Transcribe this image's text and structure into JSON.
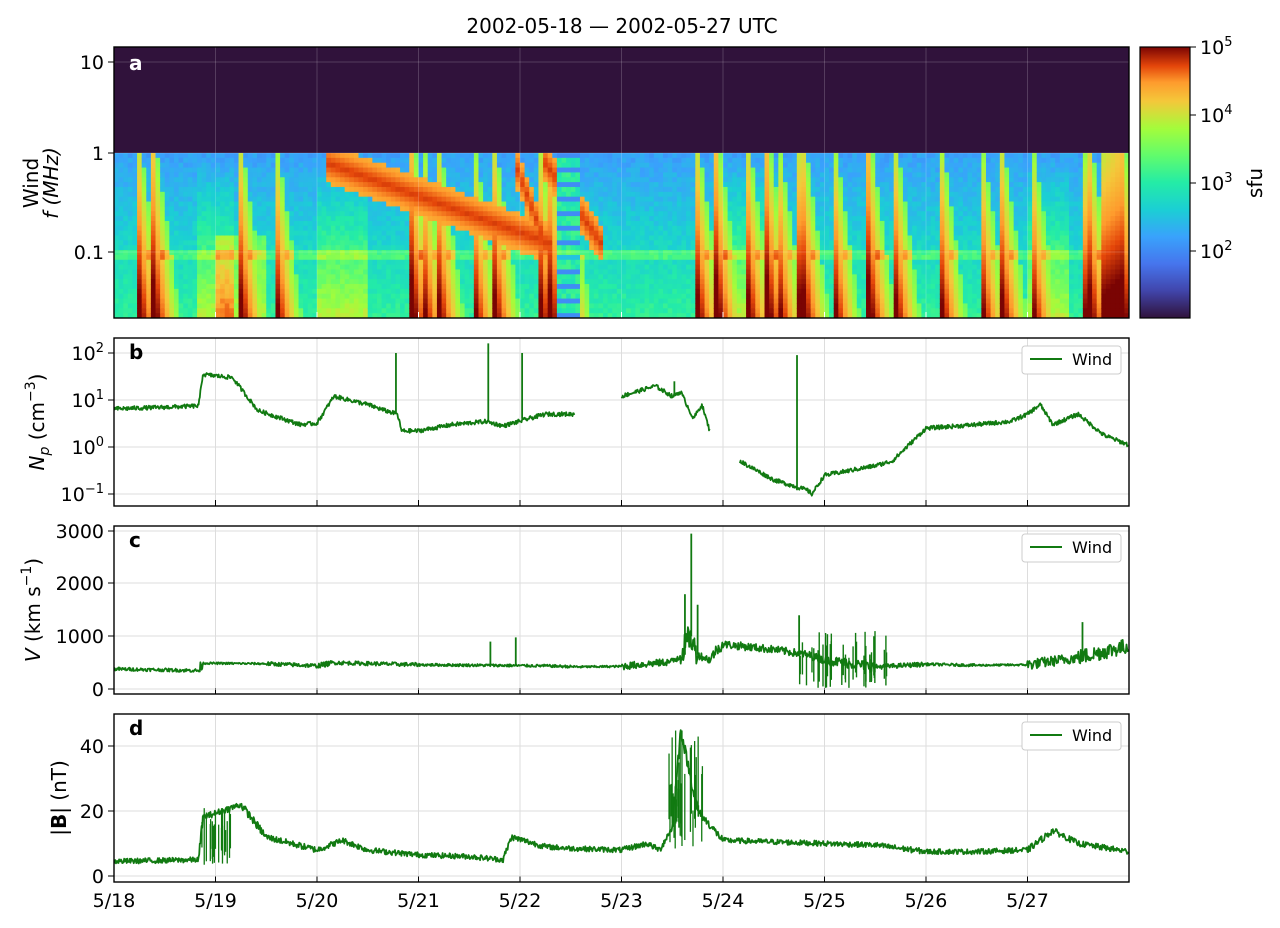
{
  "title": "2002-05-18 — 2002-05-27  UTC",
  "x_tick_labels": [
    "5/18",
    "5/19",
    "5/20",
    "5/21",
    "5/22",
    "5/23",
    "5/24",
    "5/25",
    "5/26",
    "5/27"
  ],
  "colors": {
    "wind": "#117a11",
    "grid": "#dddddd"
  },
  "panels": {
    "a": {
      "letter": "a",
      "ylabel_line1": "Wind",
      "ylabel_line2": "f (MHz)",
      "yticks": [
        "10",
        "1",
        "0.1"
      ],
      "colorbar_label": "sfu",
      "colorbar_ticks": [
        {
          "base": "10",
          "exp": "5"
        },
        {
          "base": "10",
          "exp": "4"
        },
        {
          "base": "10",
          "exp": "3"
        },
        {
          "base": "10",
          "exp": "2"
        }
      ]
    },
    "b": {
      "letter": "b",
      "ylabel_main": "N",
      "ylabel_sub": "p",
      "ylabel_unit": " (cm",
      "ylabel_exp": "−3",
      "ylabel_close": ")",
      "legend": "Wind",
      "yticks": [
        {
          "base": "10",
          "exp": "2"
        },
        {
          "base": "10",
          "exp": "1"
        },
        {
          "base": "10",
          "exp": "0"
        },
        {
          "base": "10",
          "exp": "−1"
        }
      ]
    },
    "c": {
      "letter": "c",
      "ylabel_main": "V",
      "ylabel_unit": " (km s",
      "ylabel_exp": "−1",
      "ylabel_close": ")",
      "legend": "Wind",
      "yticks": [
        "3000",
        "2000",
        "1000",
        "0"
      ]
    },
    "d": {
      "letter": "d",
      "ylabel_pre": "|",
      "ylabel_bold": "B",
      "ylabel_post": "| (nT)",
      "legend": "Wind",
      "yticks": [
        "40",
        "20",
        "0"
      ]
    }
  },
  "chart_data": [
    {
      "type": "heatmap",
      "panel": "a",
      "instrument": "Wind",
      "x_range": [
        "2002-05-18",
        "2002-05-28"
      ],
      "y_scale": "log",
      "ylim_MHz": [
        0.02,
        14
      ],
      "data_upper_MHz": 1.07,
      "colorbar": {
        "scale": "log",
        "range_sfu": [
          10,
          100000
        ],
        "colormap": "turbo",
        "label": "sfu"
      },
      "type_iii_bursts_days": [
        0.25,
        0.4,
        1.25,
        1.6,
        2.95,
        3.05,
        3.2,
        3.55,
        3.75,
        4.2,
        4.3,
        4.45,
        5.75,
        5.95,
        6.25,
        6.45,
        6.55,
        6.75,
        6.8,
        7.1,
        7.45,
        7.7,
        8.15,
        8.55,
        8.75,
        9.05,
        9.55,
        9.62,
        9.75,
        9.8,
        9.85,
        9.9,
        9.95
      ],
      "type_ii_bursts": [
        {
          "start_day": 2.1,
          "end_day": 4.3
        },
        {
          "start_day": 4.25,
          "end_day": 4.8
        },
        {
          "start_day": 3.95,
          "end_day": 4.25
        }
      ]
    },
    {
      "type": "line",
      "panel": "b",
      "series_name": "Wind",
      "ylabel": "N_p (cm^-3)",
      "y_scale": "log",
      "ylim": [
        0.05,
        250
      ],
      "x": [
        "2002-05-18 00:00",
        "2002-05-18 12:00",
        "2002-05-18 20:00",
        "2002-05-18 21:00",
        "2002-05-19 04:00",
        "2002-05-19 10:00",
        "2002-05-19 20:00",
        "2002-05-20 00:00",
        "2002-05-20 04:00",
        "2002-05-20 12:00",
        "2002-05-20 16:00",
        "2002-05-20 19:00",
        "2002-05-20 20:00",
        "2002-05-21 00:00",
        "2002-05-21 08:00",
        "2002-05-21 16:00",
        "2002-05-21 20:00",
        "2002-05-22 02:00",
        "2002-05-22 06:00",
        "2002-05-22 13:00",
        "2002-05-22 14:00",
        "2002-05-23 00:00",
        "2002-05-23 08:00",
        "2002-05-23 12:00",
        "2002-05-23 14:00",
        "2002-05-23 17:00",
        "2002-05-23 19:00",
        "2002-05-23 21:00",
        "2002-05-23 22:00",
        "2002-05-24 04:00",
        "2002-05-24 12:00",
        "2002-05-24 20:00",
        "2002-05-24 21:00",
        "2002-05-25 00:00",
        "2002-05-25 12:00",
        "2002-05-25 16:00",
        "2002-05-26 00:00",
        "2002-05-26 12:00",
        "2002-05-26 20:00",
        "2002-05-27 00:00",
        "2002-05-27 03:00",
        "2002-05-27 06:00",
        "2002-05-27 12:00",
        "2002-05-27 18:00",
        "2002-05-28 00:00"
      ],
      "values": [
        6.5,
        7,
        7.5,
        35,
        30,
        6,
        3,
        3.2,
        12,
        8,
        6,
        5,
        2.2,
        2.2,
        3,
        3.5,
        2.8,
        4,
        5,
        5,
        null,
        12,
        20,
        12,
        15,
        4,
        8,
        2,
        null,
        0.5,
        0.2,
        0.12,
        0.1,
        0.25,
        0.4,
        0.5,
        2.5,
        3,
        3.5,
        5,
        8,
        3,
        5,
        1.8,
        1.1
      ],
      "spikes": [
        {
          "x": "2002-05-20 18:40",
          "y": 100
        },
        {
          "x": "2002-05-21 16:30",
          "y": 160
        },
        {
          "x": "2002-05-22 00:30",
          "y": 100
        },
        {
          "x": "2002-05-24 17:30",
          "y": 90
        },
        {
          "x": "2002-05-23 12:30",
          "y": 25
        }
      ]
    },
    {
      "type": "line",
      "panel": "c",
      "series_name": "Wind",
      "ylabel": "V (km s^-1)",
      "ylim": [
        -80,
        3100
      ],
      "x": [
        "2002-05-18 00:00",
        "2002-05-18 20:00",
        "2002-05-18 21:00",
        "2002-05-19 12:00",
        "2002-05-20 00:00",
        "2002-05-20 04:00",
        "2002-05-21 00:00",
        "2002-05-22 06:00",
        "2002-05-22 14:00",
        "2002-05-23 00:00",
        "2002-05-23 12:00",
        "2002-05-23 14:00",
        "2002-05-23 16:00",
        "2002-05-23 18:00",
        "2002-05-23 21:00",
        "2002-05-23 22:00",
        "2002-05-24 00:00",
        "2002-05-24 12:00",
        "2002-05-24 20:00",
        "2002-05-25 00:00",
        "2002-05-25 12:00",
        "2002-05-26 00:00",
        "2002-05-26 12:00",
        "2002-05-27 00:00",
        "2002-05-27 12:00",
        "2002-05-28 00:00"
      ],
      "values": [
        380,
        350,
        490,
        480,
        440,
        500,
        460,
        440,
        420,
        430,
        520,
        650,
        1000,
        650,
        550,
        700,
        850,
        750,
        650,
        550,
        420,
        470,
        450,
        460,
        600,
        820
      ],
      "spikes": [
        {
          "x": "2002-05-21 17:00",
          "y": 900
        },
        {
          "x": "2002-05-21 23:00",
          "y": 980
        },
        {
          "x": "2002-05-23 15:00",
          "y": 1800
        },
        {
          "x": "2002-05-23 16:30",
          "y": 2950
        },
        {
          "x": "2002-05-23 18:00",
          "y": 1600
        },
        {
          "x": "2002-05-24 18:00",
          "y": 1400
        },
        {
          "x": "2002-05-27 13:00",
          "y": 1270
        }
      ]
    },
    {
      "type": "line",
      "panel": "d",
      "series_name": "Wind",
      "ylabel": "|B| (nT)",
      "ylim": [
        -1.5,
        50
      ],
      "x": [
        "2002-05-18 00:00",
        "2002-05-18 20:00",
        "2002-05-18 21:00",
        "2002-05-19 06:00",
        "2002-05-19 12:00",
        "2002-05-20 00:00",
        "2002-05-20 06:00",
        "2002-05-20 12:00",
        "2002-05-21 00:00",
        "2002-05-21 12:00",
        "2002-05-21 20:00",
        "2002-05-21 22:00",
        "2002-05-22 06:00",
        "2002-05-22 12:00",
        "2002-05-23 00:00",
        "2002-05-23 06:00",
        "2002-05-23 09:00",
        "2002-05-23 12:00",
        "2002-05-23 14:00",
        "2002-05-23 18:00",
        "2002-05-24 00:00",
        "2002-05-24 12:00",
        "2002-05-25 00:00",
        "2002-05-25 12:00",
        "2002-05-26 00:00",
        "2002-05-26 12:00",
        "2002-05-27 00:00",
        "2002-05-27 06:00",
        "2002-05-27 12:00",
        "2002-05-28 00:00"
      ],
      "values": [
        4.5,
        5,
        18,
        22,
        12,
        8,
        11,
        8,
        6.5,
        6,
        5,
        12,
        9,
        8.5,
        8,
        10,
        8,
        15,
        45,
        20,
        11,
        10.5,
        10,
        9.5,
        7.5,
        7.5,
        8,
        14,
        10,
        7.5
      ]
    }
  ]
}
